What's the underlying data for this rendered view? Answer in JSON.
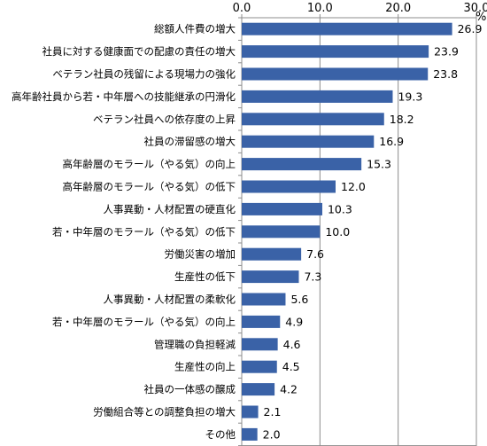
{
  "chart_data": {
    "type": "bar",
    "orientation": "horizontal",
    "unit": "%",
    "xlim": [
      0,
      30
    ],
    "ticks": [
      "0.0",
      "10.0",
      "20.0",
      "30.0"
    ],
    "grid": true,
    "bar_color": "#3a62a7",
    "categories": [
      "総額人件費の増大",
      "社員に対する健康面での配慮の責任の増大",
      "ベテラン社員の残留による現場力の強化",
      "高年齢社員から若・中年層への技能継承の円滑化",
      "ベテラン社員への依存度の上昇",
      "社員の滞留感の増大",
      "高年齢層のモラール（やる気）の向上",
      "高年齢層のモラール（やる気）の低下",
      "人事異動・人材配置の硬直化",
      "若・中年層のモラール（やる気）の低下",
      "労働災害の増加",
      "生産性の低下",
      "人事異動・人材配置の柔軟化",
      "若・中年層のモラール（やる気）の向上",
      "管理職の負担軽減",
      "生産性の向上",
      "社員の一体感の醸成",
      "労働組合等との調整負担の増大",
      "その他"
    ],
    "values": [
      26.9,
      23.9,
      23.8,
      19.3,
      18.2,
      16.9,
      15.3,
      12.0,
      10.3,
      10.0,
      7.6,
      7.3,
      5.6,
      4.9,
      4.6,
      4.5,
      4.2,
      2.1,
      2.0
    ],
    "value_labels": [
      "26.9",
      "23.9",
      "23.8",
      "19.3",
      "18.2",
      "16.9",
      "15.3",
      "12.0",
      "10.3",
      "10.0",
      "7.6",
      "7.3",
      "5.6",
      "4.9",
      "4.6",
      "4.5",
      "4.2",
      "2.1",
      "2.0"
    ]
  }
}
